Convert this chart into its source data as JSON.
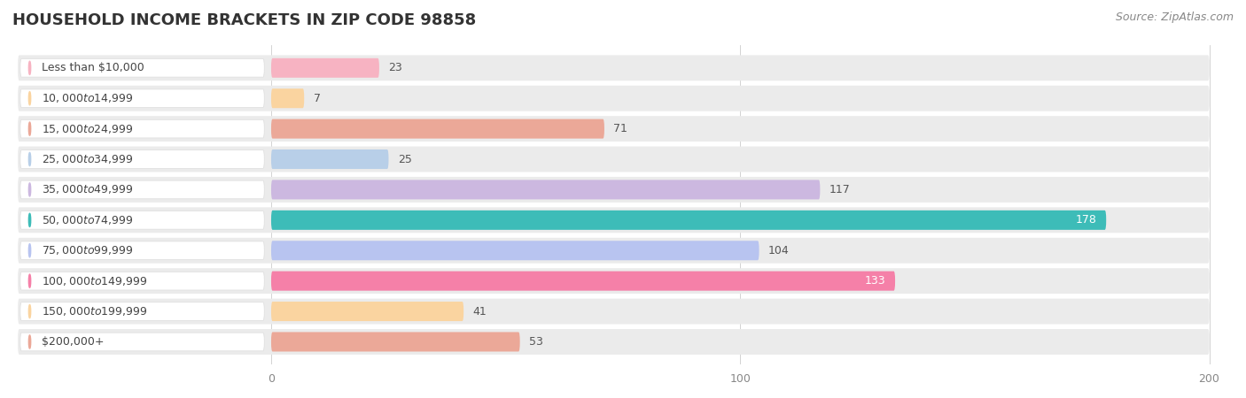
{
  "title": "HOUSEHOLD INCOME BRACKETS IN ZIP CODE 98858",
  "source": "Source: ZipAtlas.com",
  "categories": [
    "Less than $10,000",
    "$10,000 to $14,999",
    "$15,000 to $24,999",
    "$25,000 to $34,999",
    "$35,000 to $49,999",
    "$50,000 to $74,999",
    "$75,000 to $99,999",
    "$100,000 to $149,999",
    "$150,000 to $199,999",
    "$200,000+"
  ],
  "values": [
    23,
    7,
    71,
    25,
    117,
    178,
    104,
    133,
    41,
    53
  ],
  "bar_colors": [
    "#f7b3c2",
    "#fad4a0",
    "#eba898",
    "#b8cfe8",
    "#ccb8e0",
    "#3dbcb8",
    "#b8c4f0",
    "#f580a8",
    "#fad4a0",
    "#eba898"
  ],
  "label_colors": [
    "#555555",
    "#555555",
    "#555555",
    "#555555",
    "#555555",
    "#ffffff",
    "#555555",
    "#ffffff",
    "#555555",
    "#555555"
  ],
  "dot_colors": [
    "#f7b3c2",
    "#fad4a0",
    "#eba898",
    "#b8cfe8",
    "#ccb8e0",
    "#3dbcb8",
    "#b8c4f0",
    "#f580a8",
    "#fad4a0",
    "#eba898"
  ],
  "xlim": [
    0,
    200
  ],
  "xticks": [
    0,
    100,
    200
  ],
  "background_color": "#ffffff",
  "row_bg_color": "#ebebeb",
  "label_bg_color": "#ffffff",
  "title_fontsize": 13,
  "source_fontsize": 9,
  "value_fontsize": 9,
  "tick_fontsize": 9,
  "category_fontsize": 9
}
